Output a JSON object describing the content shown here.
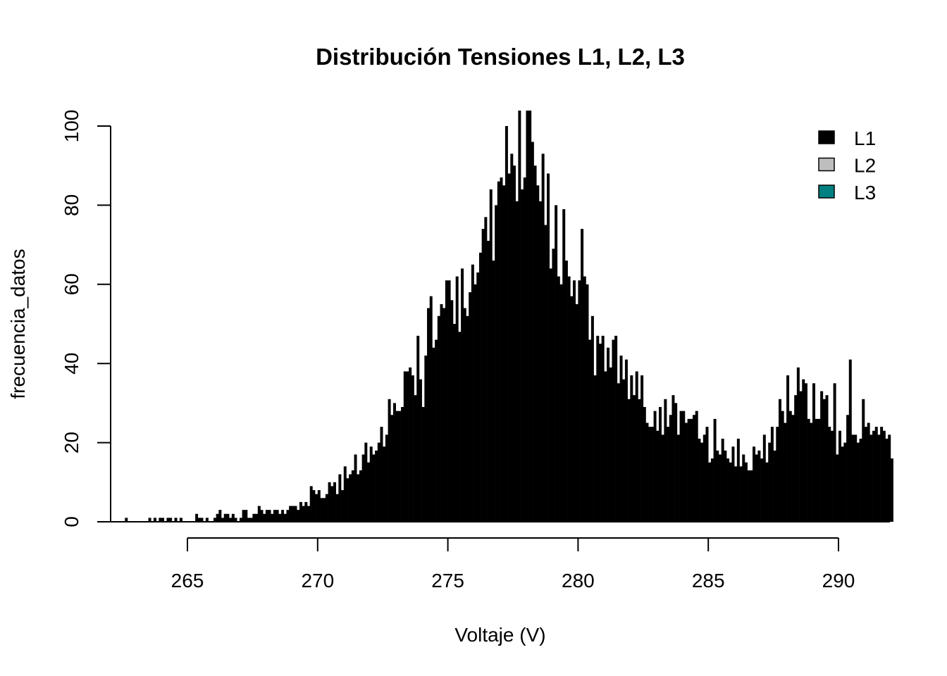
{
  "chart_data": {
    "type": "bar",
    "title": "Distribución Tensiones L1, L2, L3",
    "xlabel": "Voltaje (V)",
    "ylabel": "frecuencia_datos",
    "xlim": [
      262.6,
      292.1
    ],
    "ylim": [
      0,
      100
    ],
    "x_ticks": [
      265,
      270,
      275,
      280,
      285,
      290
    ],
    "y_ticks": [
      0,
      20,
      40,
      60,
      80,
      100
    ],
    "bin_start": 262.6,
    "bin_width": 0.1,
    "grid": false,
    "legend_position": "top-right",
    "legend": [
      {
        "label": "L1",
        "color": "#000000"
      },
      {
        "label": "L2",
        "color": "#bebebe"
      },
      {
        "label": "L3",
        "color": "#008080"
      }
    ],
    "series": [
      {
        "name": "L1",
        "color": "#000000",
        "values": [
          1,
          0,
          0,
          0,
          0,
          0,
          0,
          0,
          0,
          1,
          0,
          1,
          0,
          1,
          1,
          0,
          1,
          1,
          0,
          1,
          0,
          1,
          0,
          0,
          0,
          0,
          0,
          2,
          1,
          1,
          0,
          1,
          0,
          0,
          1,
          2,
          3,
          1,
          2,
          2,
          1,
          2,
          1,
          0,
          1,
          3,
          3,
          1,
          1,
          2,
          2,
          4,
          3,
          2,
          3,
          3,
          2,
          3,
          3,
          2,
          3,
          2,
          3,
          4,
          4,
          4,
          3,
          5,
          4,
          5,
          4,
          9,
          8,
          7,
          8,
          6,
          6,
          7,
          10,
          9,
          10,
          7,
          12,
          8,
          14,
          11,
          12,
          13,
          17,
          12,
          13,
          17,
          20,
          15,
          19,
          17,
          18,
          20,
          24,
          19,
          22,
          31,
          27,
          30,
          28,
          28,
          29,
          38,
          38,
          39,
          37,
          32,
          47,
          36,
          29,
          42,
          54,
          57,
          44,
          46,
          52,
          55,
          54,
          61,
          61,
          56,
          50,
          62,
          48,
          64,
          54,
          52,
          58,
          65,
          60,
          63,
          68,
          74,
          77,
          71,
          84,
          66,
          80,
          86,
          87,
          85,
          100,
          88,
          93,
          90,
          81,
          104,
          84,
          87,
          104,
          104,
          96,
          90,
          85,
          81,
          93,
          75,
          88,
          64,
          69,
          80,
          62,
          60,
          79,
          66,
          62,
          57,
          61,
          55,
          61,
          74,
          62,
          60,
          46,
          52,
          37,
          47,
          45,
          47,
          38,
          44,
          39,
          46,
          47,
          35,
          42,
          36,
          41,
          31,
          37,
          32,
          38,
          31,
          37,
          29,
          25,
          24,
          24,
          28,
          23,
          29,
          22,
          31,
          24,
          27,
          32,
          30,
          22,
          28,
          28,
          25,
          26,
          26,
          27,
          28,
          21,
          20,
          22,
          24,
          15,
          16,
          26,
          18,
          17,
          21,
          18,
          16,
          15,
          19,
          14,
          21,
          14,
          17,
          15,
          13,
          13,
          19,
          17,
          18,
          16,
          22,
          15,
          20,
          24,
          18,
          24,
          31,
          28,
          25,
          37,
          28,
          27,
          32,
          39,
          33,
          36,
          35,
          26,
          25,
          35,
          26,
          26,
          33,
          31,
          32,
          24,
          23,
          35,
          17,
          23,
          19,
          20,
          27,
          41,
          22,
          22,
          20,
          21,
          31,
          24,
          25,
          22,
          23,
          24,
          22,
          24,
          23,
          21,
          22,
          16
        ]
      }
    ]
  }
}
